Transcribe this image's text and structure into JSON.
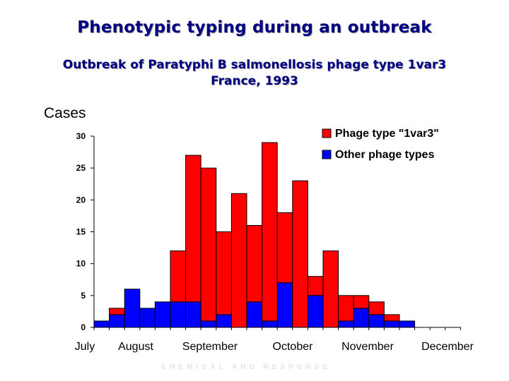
{
  "title": "Phenotypic typing during an outbreak",
  "subtitle_line1": "Outbreak of Paratyphi B salmonellosis phage type 1var3",
  "subtitle_line2": "France, 1993",
  "footer_text": "CHEMICAL AND RESPONSE",
  "chart_data": {
    "type": "bar",
    "stacked": true,
    "ylabel": "Cases",
    "ylim": [
      0,
      30
    ],
    "yticks": [
      0,
      5,
      10,
      15,
      20,
      25,
      30
    ],
    "month_labels": [
      "July",
      "August",
      "September",
      "October",
      "November",
      "December"
    ],
    "series": [
      {
        "name": "Other phage types",
        "color": "#0000ff",
        "values": [
          1,
          2,
          6,
          3,
          4,
          4,
          4,
          1,
          2,
          0,
          4,
          1,
          7,
          0,
          5,
          0,
          1,
          3,
          2,
          1,
          1
        ]
      },
      {
        "name": "Phage type \"1var3\"",
        "color": "#ff0000",
        "values": [
          0,
          1,
          0,
          0,
          0,
          8,
          23,
          24,
          13,
          21,
          12,
          28,
          11,
          23,
          3,
          12,
          4,
          2,
          2,
          1,
          0
        ]
      }
    ],
    "legend_position": "top-right",
    "grid": false
  }
}
